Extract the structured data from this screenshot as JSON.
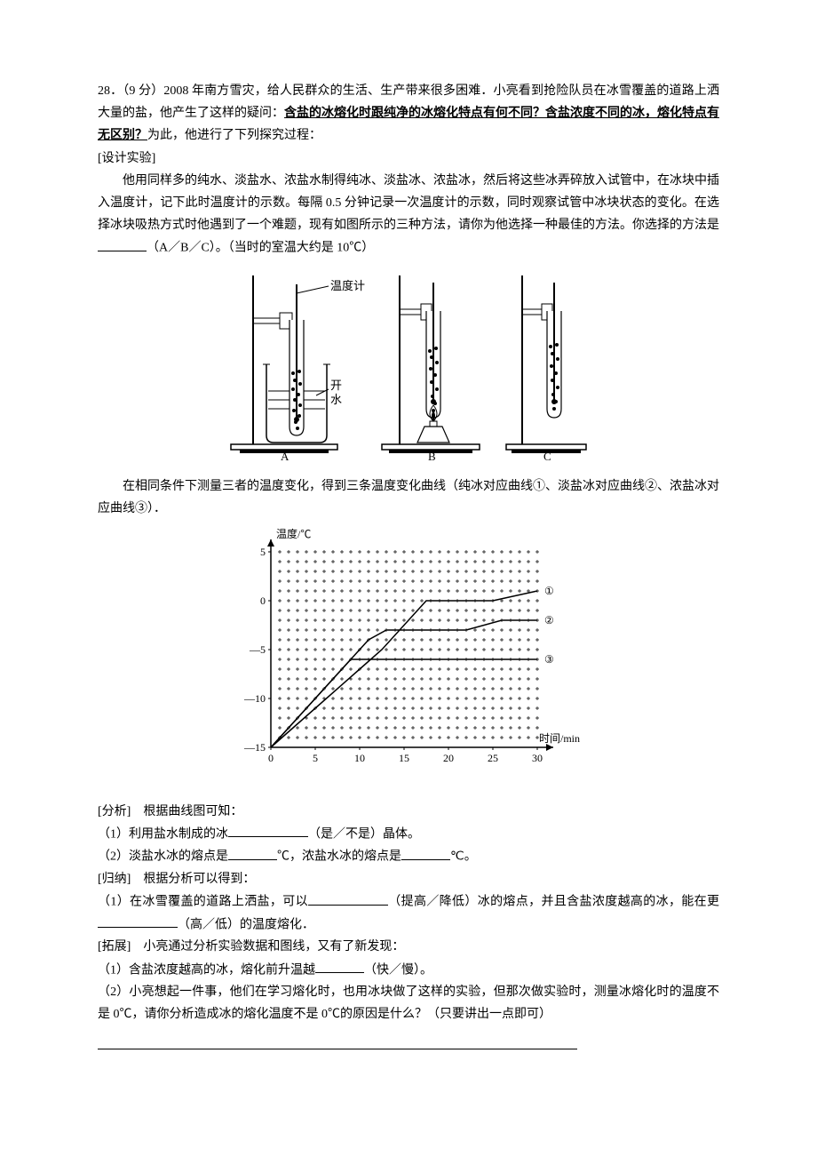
{
  "q": {
    "num": "28．（9 分）",
    "intro_a": "2008 年南方雪灾，给人民群众的生活、生产带来很多困难．小亮看到抢险队员在冰雪覆盖的道路上洒大量的盐，他产生了这样的疑问：",
    "intro_b_bold": "含盐的冰熔化时跟纯净的冰熔化特点有何不同？含盐浓度不同的冰，熔化特点有无区别？",
    "intro_c": "为此，他进行了下列探究过程：",
    "design_label": "[设计实验]",
    "design_body_1": "他用同样多的纯水、淡盐水、浓盐水制得纯冰、淡盐冰、浓盐冰，然后将这些冰弄碎放入试管中，在冰块中插入温度计，记下此时温度计的示数。每隔 0.5 分钟记录一次温度计的示数，同时观察试管中冰块状态的变化。在选择冰块吸热方式时他遇到了一个难题，现有如图所示的三种方法，请你为他选择一种最佳的方法。你选择的方法是",
    "design_body_2": "（A／B／C）。（当时的室温大约是 10℃）",
    "curve_intro": "在相同条件下测量三者的温度变化，得到三条温度变化曲线（纯冰对应曲线①、淡盐冰对应曲线②、浓盐冰对应曲线③）．",
    "analysis_label": "[分析]　根据曲线图可知：",
    "a1_pre": "（1）利用盐水制成的冰",
    "a1_post": "（是／不是）晶体。",
    "a2_pre": "（2）淡盐水冰的熔点是",
    "a2_mid": "℃，浓盐水冰的熔点是",
    "a2_post": "℃。",
    "sum_label": "[归纳]　根据分析可以得到：",
    "s1_pre": "（1）在冰雪覆盖的道路上洒盐，可以",
    "s1_mid": "（提高／降低）冰的熔点，并且含盐浓度越高的冰，能在更",
    "s1_post": "（高／低）的温度熔化．",
    "ext_label": "[拓展]　小亮通过分析实验数据和图线，又有了新发现：",
    "e1_pre": "（1）含盐浓度越高的冰，熔化前升温越",
    "e1_post": "（快／慢）。",
    "e2": "（2）小亮想起一件事，他们在学习熔化时，也用冰块做了这样的实验，但那次做实验时，测量冰熔化时的温度不是 0℃，请你分析造成冰的熔化温度不是 0℃的原因是什么？（只要讲出一点即可）"
  },
  "diagram": {
    "thermo_label": "温度计",
    "water_label_top": "开",
    "water_label_bot": "水",
    "labels": [
      "A",
      "B",
      "C"
    ]
  },
  "chart": {
    "y_title": "温度/℃",
    "x_title": "时间/min",
    "y_ticks": [
      5,
      0,
      -5,
      -10,
      -15
    ],
    "x_ticks": [
      0,
      5,
      10,
      15,
      20,
      25,
      30
    ],
    "ylim": [
      -15,
      5
    ],
    "xlim": [
      0,
      30
    ],
    "background_color": "#ffffff",
    "plus_color": "#000000",
    "axis_color": "#000000",
    "curve_labels": [
      "①",
      "②",
      "③"
    ],
    "curves": [
      {
        "name": "①",
        "pts": [
          [
            0,
            -15
          ],
          [
            5,
            -11
          ],
          [
            10,
            -7
          ],
          [
            12.5,
            -5
          ],
          [
            15,
            -2.5
          ],
          [
            17.5,
            0
          ],
          [
            25,
            0
          ],
          [
            30,
            1
          ]
        ]
      },
      {
        "name": "②",
        "pts": [
          [
            0,
            -15
          ],
          [
            5,
            -10
          ],
          [
            8,
            -7
          ],
          [
            11,
            -4
          ],
          [
            13,
            -3
          ],
          [
            22,
            -3
          ],
          [
            26,
            -2
          ],
          [
            30,
            -2
          ]
        ]
      },
      {
        "name": "③",
        "pts": [
          [
            0,
            -15
          ],
          [
            4,
            -11
          ],
          [
            7,
            -8
          ],
          [
            9,
            -6
          ],
          [
            20,
            -6
          ],
          [
            25,
            -6
          ],
          [
            30,
            -6
          ]
        ]
      }
    ],
    "line_width": 1.5,
    "grid_rows": 20,
    "grid_cols": 30
  }
}
